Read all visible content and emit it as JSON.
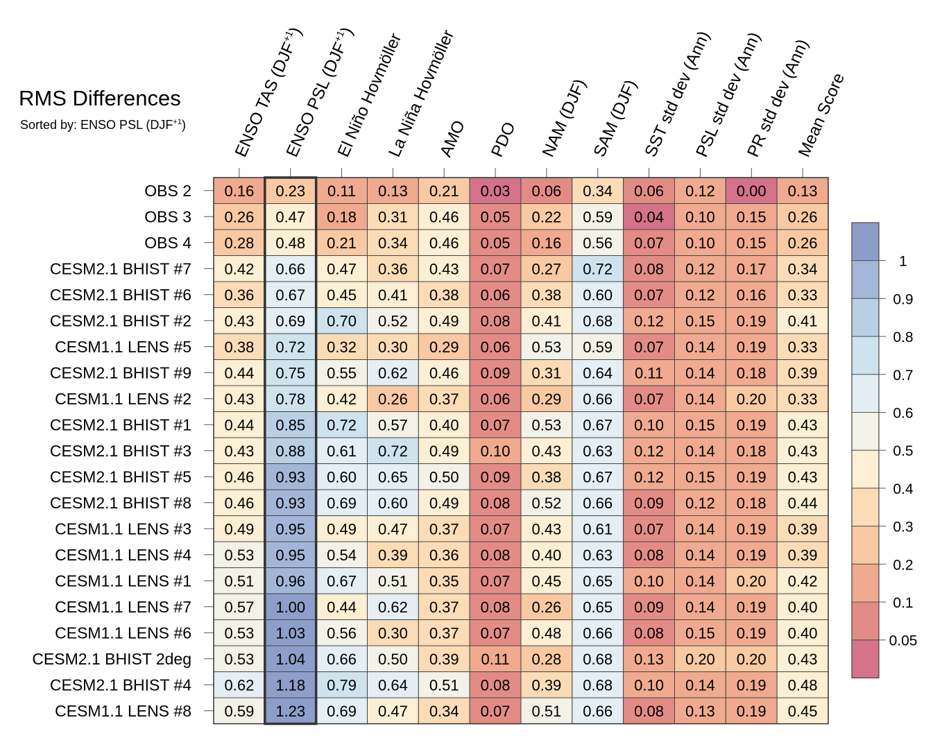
{
  "chart_data": {
    "type": "heatmap",
    "title": "RMS Differences",
    "subtitle_prefix": "Sorted by: ENSO PSL (DJF",
    "subtitle_sup": "+1",
    "subtitle_suffix": ")",
    "columns": [
      {
        "base": "ENSO TAS (DJF",
        "sup": "+1",
        "suffix": ")"
      },
      {
        "base": "ENSO PSL (DJF",
        "sup": "+1",
        "suffix": ")"
      },
      {
        "base": "El Niño Hovmöller",
        "sup": "",
        "suffix": ""
      },
      {
        "base": "La Niña Hovmöller",
        "sup": "",
        "suffix": ""
      },
      {
        "base": "AMO",
        "sup": "",
        "suffix": ""
      },
      {
        "base": "PDO",
        "sup": "",
        "suffix": ""
      },
      {
        "base": "NAM (DJF)",
        "sup": "",
        "suffix": ""
      },
      {
        "base": "SAM (DJF)",
        "sup": "",
        "suffix": ""
      },
      {
        "base": "SST std dev (Ann)",
        "sup": "",
        "suffix": ""
      },
      {
        "base": "PSL std dev (Ann)",
        "sup": "",
        "suffix": ""
      },
      {
        "base": "PR std dev (Ann)",
        "sup": "",
        "suffix": ""
      },
      {
        "base": "Mean Score",
        "sup": "",
        "suffix": ""
      }
    ],
    "rows": [
      "OBS 2",
      "OBS 3",
      "OBS 4",
      "CESM2.1 BHIST #7",
      "CESM2.1 BHIST #6",
      "CESM2.1 BHIST #2",
      "CESM1.1 LENS #5",
      "CESM2.1 BHIST #9",
      "CESM1.1 LENS #2",
      "CESM2.1 BHIST #1",
      "CESM2.1 BHIST #3",
      "CESM2.1 BHIST #5",
      "CESM2.1 BHIST #8",
      "CESM1.1 LENS #3",
      "CESM1.1 LENS #4",
      "CESM1.1 LENS #1",
      "CESM1.1 LENS #7",
      "CESM1.1 LENS #6",
      "CESM2.1 BHIST 2deg",
      "CESM2.1 BHIST #4",
      "CESM1.1 LENS #8"
    ],
    "values": [
      [
        "0.16",
        "0.23",
        "0.11",
        "0.13",
        "0.21",
        "0.03",
        "0.06",
        "0.34",
        "0.06",
        "0.12",
        "0.00",
        "0.13"
      ],
      [
        "0.26",
        "0.47",
        "0.18",
        "0.31",
        "0.46",
        "0.05",
        "0.22",
        "0.59",
        "0.04",
        "0.10",
        "0.15",
        "0.26"
      ],
      [
        "0.28",
        "0.48",
        "0.21",
        "0.34",
        "0.46",
        "0.05",
        "0.16",
        "0.56",
        "0.07",
        "0.10",
        "0.15",
        "0.26"
      ],
      [
        "0.42",
        "0.66",
        "0.47",
        "0.36",
        "0.43",
        "0.07",
        "0.27",
        "0.72",
        "0.08",
        "0.12",
        "0.17",
        "0.34"
      ],
      [
        "0.36",
        "0.67",
        "0.45",
        "0.41",
        "0.38",
        "0.06",
        "0.38",
        "0.60",
        "0.07",
        "0.12",
        "0.16",
        "0.33"
      ],
      [
        "0.43",
        "0.69",
        "0.70",
        "0.52",
        "0.49",
        "0.08",
        "0.41",
        "0.68",
        "0.12",
        "0.15",
        "0.19",
        "0.41"
      ],
      [
        "0.38",
        "0.72",
        "0.32",
        "0.30",
        "0.29",
        "0.06",
        "0.53",
        "0.59",
        "0.07",
        "0.14",
        "0.19",
        "0.33"
      ],
      [
        "0.44",
        "0.75",
        "0.55",
        "0.62",
        "0.46",
        "0.09",
        "0.31",
        "0.64",
        "0.11",
        "0.14",
        "0.18",
        "0.39"
      ],
      [
        "0.43",
        "0.78",
        "0.42",
        "0.26",
        "0.37",
        "0.06",
        "0.29",
        "0.66",
        "0.07",
        "0.14",
        "0.20",
        "0.33"
      ],
      [
        "0.44",
        "0.85",
        "0.72",
        "0.57",
        "0.40",
        "0.07",
        "0.53",
        "0.67",
        "0.10",
        "0.15",
        "0.19",
        "0.43"
      ],
      [
        "0.43",
        "0.88",
        "0.61",
        "0.72",
        "0.49",
        "0.10",
        "0.43",
        "0.63",
        "0.12",
        "0.14",
        "0.18",
        "0.43"
      ],
      [
        "0.46",
        "0.93",
        "0.60",
        "0.65",
        "0.50",
        "0.09",
        "0.38",
        "0.67",
        "0.12",
        "0.15",
        "0.19",
        "0.43"
      ],
      [
        "0.46",
        "0.93",
        "0.69",
        "0.60",
        "0.49",
        "0.08",
        "0.52",
        "0.66",
        "0.09",
        "0.12",
        "0.18",
        "0.44"
      ],
      [
        "0.49",
        "0.95",
        "0.49",
        "0.47",
        "0.37",
        "0.07",
        "0.43",
        "0.61",
        "0.07",
        "0.14",
        "0.19",
        "0.39"
      ],
      [
        "0.53",
        "0.95",
        "0.54",
        "0.39",
        "0.36",
        "0.08",
        "0.40",
        "0.63",
        "0.08",
        "0.14",
        "0.19",
        "0.39"
      ],
      [
        "0.51",
        "0.96",
        "0.67",
        "0.51",
        "0.35",
        "0.07",
        "0.45",
        "0.65",
        "0.10",
        "0.14",
        "0.20",
        "0.42"
      ],
      [
        "0.57",
        "1.00",
        "0.44",
        "0.62",
        "0.37",
        "0.08",
        "0.26",
        "0.65",
        "0.09",
        "0.14",
        "0.19",
        "0.40"
      ],
      [
        "0.53",
        "1.03",
        "0.56",
        "0.30",
        "0.37",
        "0.07",
        "0.48",
        "0.66",
        "0.08",
        "0.15",
        "0.19",
        "0.40"
      ],
      [
        "0.53",
        "1.04",
        "0.66",
        "0.50",
        "0.39",
        "0.11",
        "0.28",
        "0.68",
        "0.13",
        "0.20",
        "0.20",
        "0.43"
      ],
      [
        "0.62",
        "1.18",
        "0.79",
        "0.64",
        "0.51",
        "0.08",
        "0.39",
        "0.68",
        "0.10",
        "0.14",
        "0.19",
        "0.48"
      ],
      [
        "0.59",
        "1.23",
        "0.69",
        "0.47",
        "0.34",
        "0.07",
        "0.51",
        "0.66",
        "0.08",
        "0.13",
        "0.19",
        "0.45"
      ]
    ],
    "highlight_column": 1,
    "colorbar": {
      "labels": [
        "1",
        "0.9",
        "0.8",
        "0.7",
        "0.6",
        "0.5",
        "0.4",
        "0.3",
        "0.2",
        "0.1",
        "0.05"
      ],
      "colors": [
        "#8e9ecb",
        "#a4b6d8",
        "#b9cfe4",
        "#cfe3ee",
        "#e4eef4",
        "#f3f2e8",
        "#fcefd3",
        "#fbdcb7",
        "#f8c9a3",
        "#f0aa8f",
        "#e38c86",
        "#d4738a"
      ]
    }
  }
}
